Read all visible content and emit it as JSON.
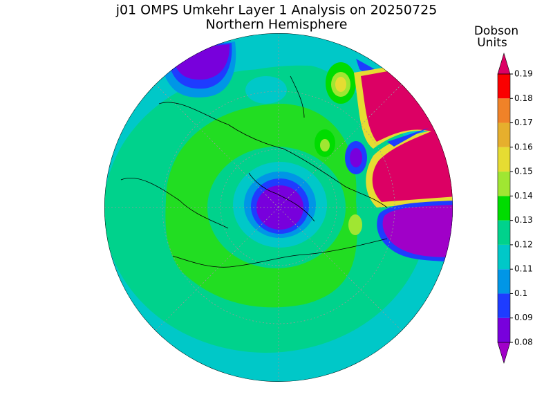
{
  "title": "j01 OMPS Umkehr Layer 1 Analysis on 20250725",
  "subtitle": "Northern Hemisphere",
  "colorbar": {
    "label_lines": [
      "Dobson",
      "Units"
    ],
    "ticks": [
      0.08,
      0.09,
      0.1,
      0.11,
      0.12,
      0.13,
      0.14,
      0.15,
      0.16,
      0.17,
      0.18,
      0.19
    ],
    "colors": [
      "#a000c8",
      "#7800dc",
      "#1e3cff",
      "#0096e6",
      "#00c8c8",
      "#00d28c",
      "#00dc00",
      "#a0e632",
      "#e6dc32",
      "#e6af2d",
      "#f08228",
      "#fa0000",
      "#dc0064"
    ]
  }
}
